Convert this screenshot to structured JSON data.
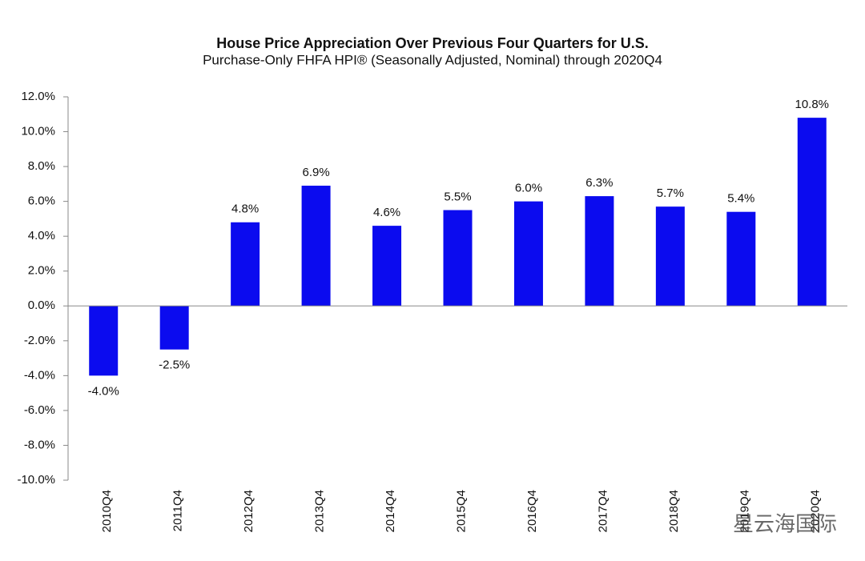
{
  "chart_data": {
    "type": "bar",
    "title": "House Price Appreciation Over Previous Four Quarters for U.S.",
    "subtitle": "Purchase-Only FHFA HPI® (Seasonally Adjusted, Nominal) through 2020Q4",
    "categories": [
      "2010Q4",
      "2011Q4",
      "2012Q4",
      "2013Q4",
      "2014Q4",
      "2015Q4",
      "2016Q4",
      "2017Q4",
      "2018Q4",
      "2019Q4",
      "2020Q4"
    ],
    "values": [
      -4.0,
      -2.5,
      4.8,
      6.9,
      4.6,
      5.5,
      6.0,
      6.3,
      5.7,
      5.4,
      10.8
    ],
    "value_labels": [
      "-4.0%",
      "-2.5%",
      "4.8%",
      "6.9%",
      "4.6%",
      "5.5%",
      "6.0%",
      "6.3%",
      "5.7%",
      "5.4%",
      "10.8%"
    ],
    "color": "#0b0bef",
    "ylim": [
      -10,
      12
    ],
    "yticks": [
      {
        "value": -10,
        "label": "-10.0%"
      },
      {
        "value": -8,
        "label": "-8.0%"
      },
      {
        "value": -6,
        "label": "-6.0%"
      },
      {
        "value": -4,
        "label": "-4.0%"
      },
      {
        "value": -2,
        "label": "-2.0%"
      },
      {
        "value": 0,
        "label": "0.0%"
      },
      {
        "value": 2,
        "label": "2.0%"
      },
      {
        "value": 4,
        "label": "4.0%"
      },
      {
        "value": 6,
        "label": "6.0%"
      },
      {
        "value": 8,
        "label": "8.0%"
      },
      {
        "value": 10,
        "label": "10.0%"
      },
      {
        "value": 12,
        "label": "12.0%"
      }
    ],
    "grid": false,
    "watermark": "星云海国际"
  }
}
